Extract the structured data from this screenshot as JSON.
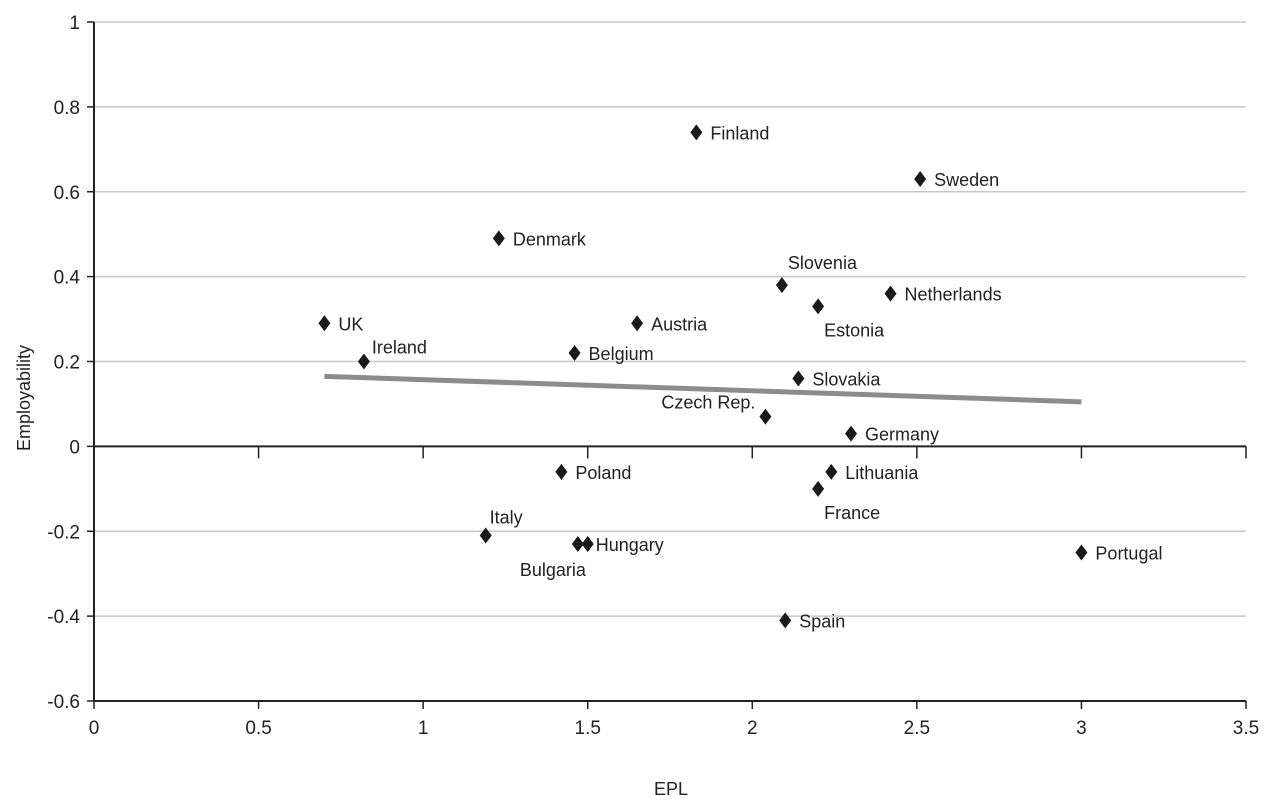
{
  "chart_data": {
    "type": "scatter",
    "title": "",
    "xlabel": "EPL",
    "ylabel": "Employability",
    "xlim": [
      0,
      3.5
    ],
    "ylim": [
      -0.6,
      1
    ],
    "x_ticks": [
      0,
      0.5,
      1,
      1.5,
      2,
      2.5,
      3,
      3.5
    ],
    "x_tick_labels": [
      "0",
      "0.5",
      "1",
      "1.5",
      "2",
      "2.5",
      "3",
      "3.5"
    ],
    "y_ticks": [
      -0.6,
      -0.4,
      -0.2,
      0,
      0.2,
      0.4,
      0.6,
      0.8,
      1
    ],
    "y_tick_labels": [
      "-0.6",
      "-0.4",
      "-0.2",
      "0",
      "0.2",
      "0.4",
      "0.6",
      "0.8",
      "1"
    ],
    "grid": "horizontal",
    "legend": "none",
    "marker": "diamond",
    "colors": {
      "points": "#1a1a1a",
      "trend": "#8c8c8c",
      "grid": "#c8c8c8",
      "axis": "#222222"
    },
    "points": [
      {
        "label": "Finland",
        "x": 1.83,
        "y": 0.74
      },
      {
        "label": "Sweden",
        "x": 2.51,
        "y": 0.63
      },
      {
        "label": "Denmark",
        "x": 1.23,
        "y": 0.49
      },
      {
        "label": "Slovenia",
        "x": 2.09,
        "y": 0.38
      },
      {
        "label": "Netherlands",
        "x": 2.42,
        "y": 0.36
      },
      {
        "label": "Estonia",
        "x": 2.2,
        "y": 0.33
      },
      {
        "label": "UK",
        "x": 0.7,
        "y": 0.29
      },
      {
        "label": "Austria",
        "x": 1.65,
        "y": 0.29
      },
      {
        "label": "Ireland",
        "x": 0.82,
        "y": 0.2
      },
      {
        "label": "Belgium",
        "x": 1.46,
        "y": 0.22
      },
      {
        "label": "Slovakia",
        "x": 2.14,
        "y": 0.16
      },
      {
        "label": "Czech Rep.",
        "x": 2.04,
        "y": 0.07
      },
      {
        "label": "Germany",
        "x": 2.3,
        "y": 0.03
      },
      {
        "label": "Poland",
        "x": 1.42,
        "y": -0.06
      },
      {
        "label": "Lithuania",
        "x": 2.24,
        "y": -0.06
      },
      {
        "label": "France",
        "x": 2.2,
        "y": -0.1
      },
      {
        "label": "Italy",
        "x": 1.19,
        "y": -0.21
      },
      {
        "label": "Bulgaria",
        "x": 1.47,
        "y": -0.23
      },
      {
        "label": "Hungary",
        "x": 1.5,
        "y": -0.23
      },
      {
        "label": "Portugal",
        "x": 3.0,
        "y": -0.25
      },
      {
        "label": "Spain",
        "x": 2.1,
        "y": -0.41
      }
    ],
    "trendline": {
      "x": [
        0.7,
        3.0
      ],
      "y": [
        0.165,
        0.105
      ]
    }
  }
}
